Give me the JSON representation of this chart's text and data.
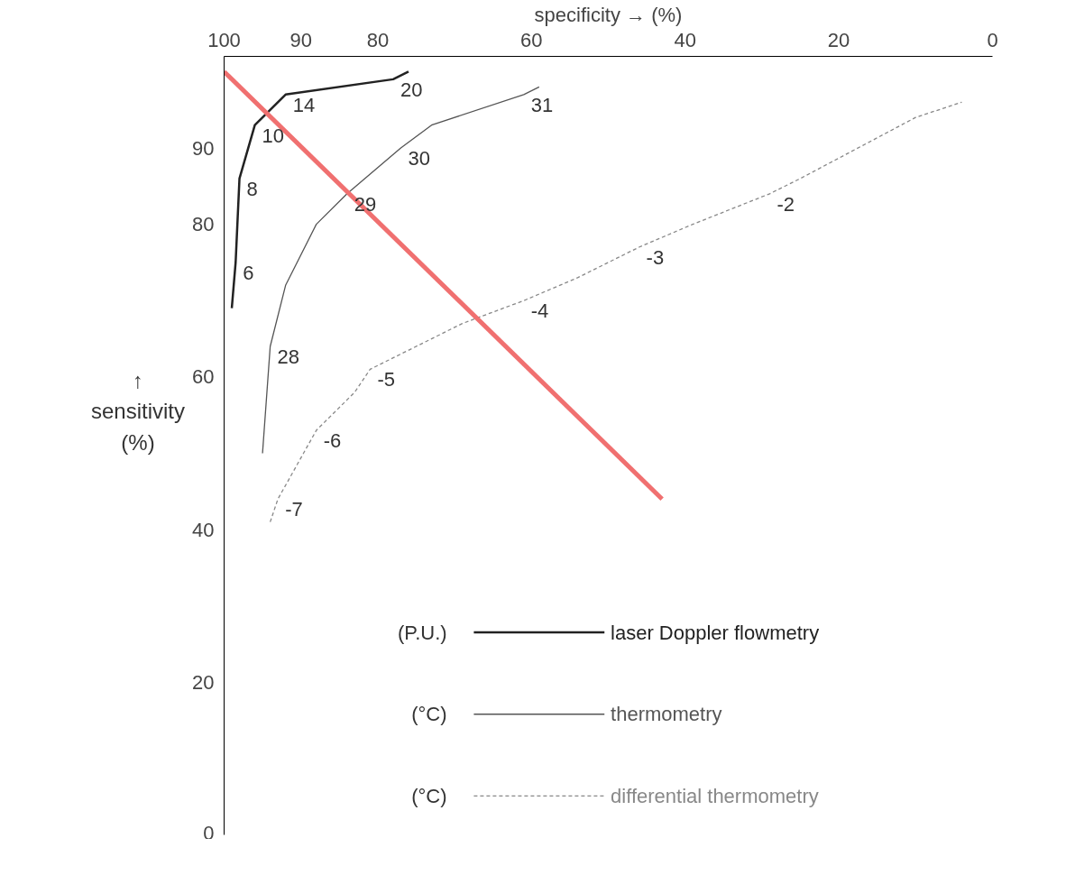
{
  "chart_data": {
    "type": "line",
    "xlabel": "specificity → (%)",
    "ylabel": "↑\nsensitivity\n(%)",
    "xlim": [
      100,
      0
    ],
    "xticks": [
      100,
      90,
      80,
      60,
      40,
      20,
      0
    ],
    "ylim": [
      0,
      102
    ],
    "yticks": [
      0,
      20,
      40,
      60,
      80,
      90
    ],
    "grid": false,
    "legend": "bottom right",
    "marker": "none",
    "series": [
      {
        "name": "laser Doppler flowmetry",
        "color": "#222222",
        "line_style": "solid",
        "x": [
          99,
          98.5,
          98,
          96,
          92,
          78,
          76
        ],
        "values": [
          69,
          75,
          86,
          93,
          97,
          99,
          100
        ]
      },
      {
        "name": "thermometry",
        "color": "#555555",
        "line_style": "solid",
        "x": [
          95,
          94,
          92,
          88,
          84,
          77,
          73,
          61,
          59
        ],
        "values": [
          50,
          64,
          72,
          80,
          84,
          90,
          93,
          97,
          98
        ]
      },
      {
        "name": "differential thermometry",
        "color": "#888888",
        "line_style": "dashed",
        "x": [
          94,
          93,
          88,
          83,
          81,
          69,
          61,
          54,
          46,
          39,
          29,
          25,
          10,
          4
        ],
        "values": [
          41,
          44,
          53,
          58,
          61,
          67,
          70,
          73,
          77,
          80,
          84,
          86,
          94,
          96
        ]
      },
      {
        "color": "#f07070",
        "line_style": "solid",
        "x": [
          100,
          43
        ],
        "values": [
          100,
          44
        ]
      }
    ],
    "annotations": [
      {
        "text": "6",
        "x": 98.5,
        "y": 75
      },
      {
        "text": "8",
        "x": 98,
        "y": 86
      },
      {
        "text": "10",
        "x": 96,
        "y": 93
      },
      {
        "text": "14",
        "x": 92,
        "y": 97
      },
      {
        "text": "20",
        "x": 78,
        "y": 99
      },
      {
        "text": "28",
        "x": 94,
        "y": 64
      },
      {
        "text": "29",
        "x": 84,
        "y": 84
      },
      {
        "text": "30",
        "x": 77,
        "y": 90
      },
      {
        "text": "31",
        "x": 61,
        "y": 97
      },
      {
        "text": "-7",
        "x": 93,
        "y": 44
      },
      {
        "text": "-6",
        "x": 88,
        "y": 53
      },
      {
        "text": "-5",
        "x": 81,
        "y": 61
      },
      {
        "text": "-4",
        "x": 61,
        "y": 70
      },
      {
        "text": "-3",
        "x": 46,
        "y": 77
      },
      {
        "text": "-2",
        "x": 29,
        "y": 84
      },
      "(P.U.)",
      "(°C)",
      "(°C)"
    ]
  }
}
